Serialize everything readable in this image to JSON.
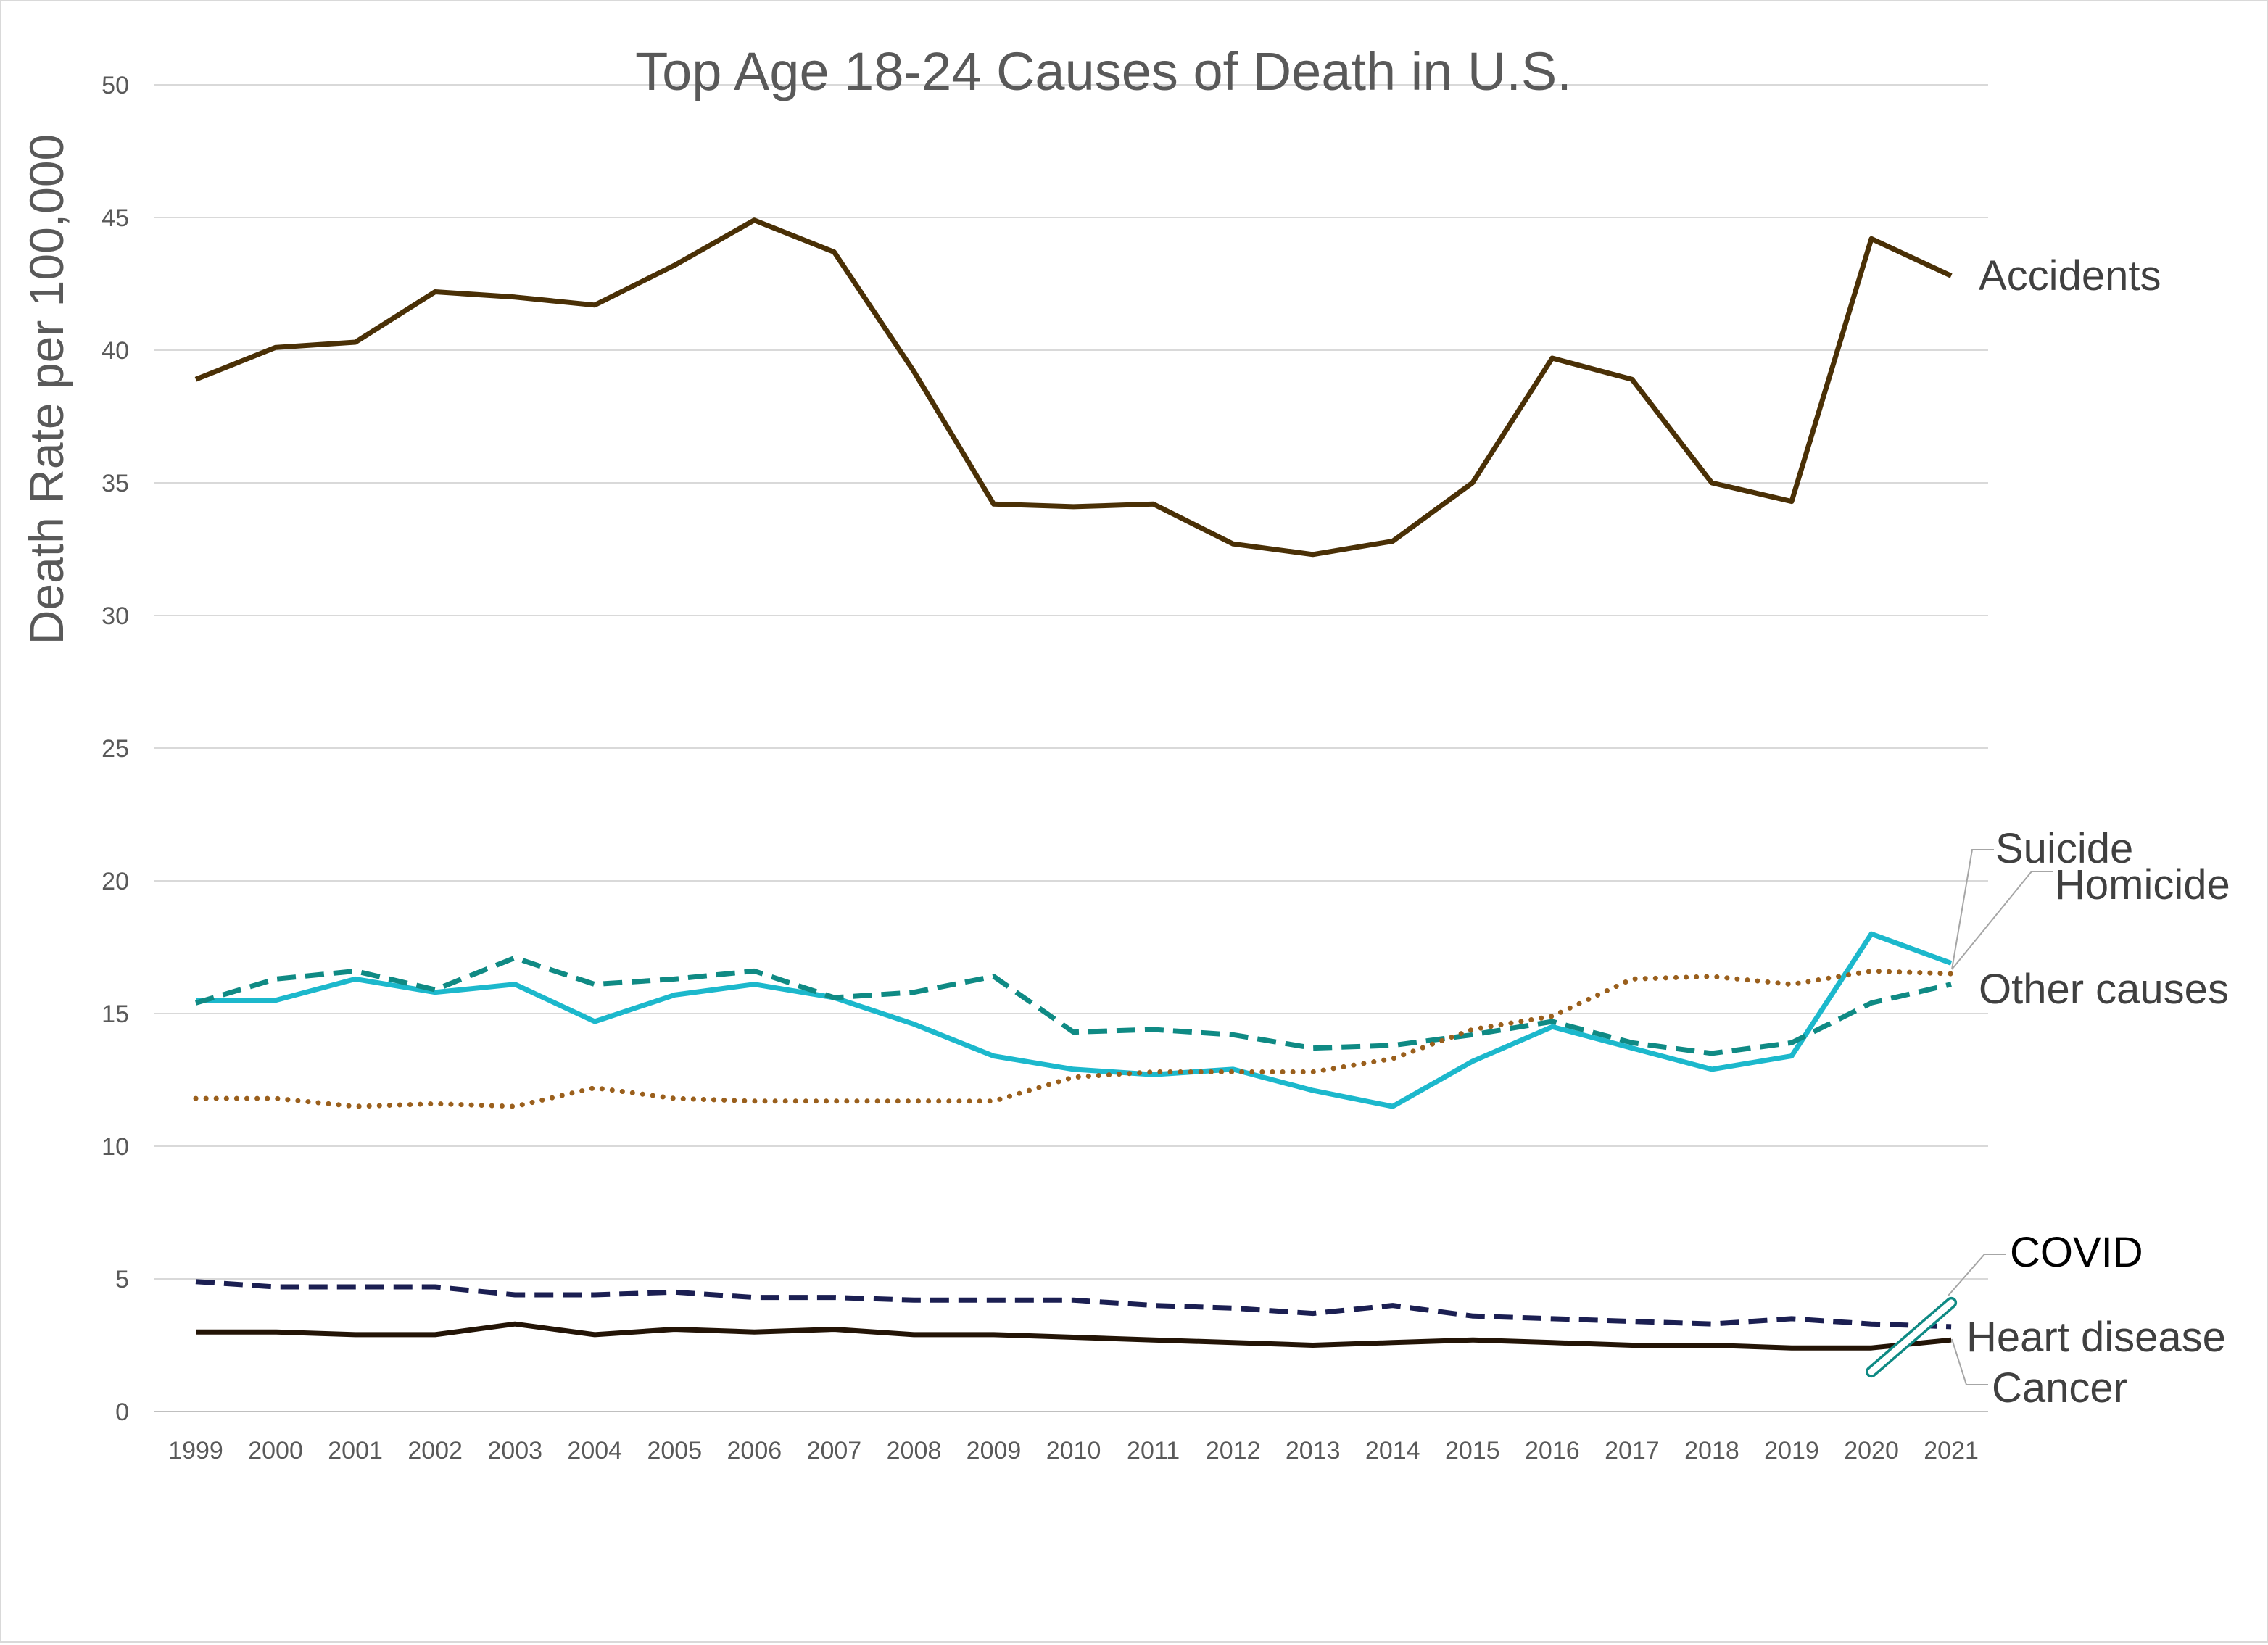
{
  "chart_data": {
    "type": "line",
    "title": "Top Age 18-24 Causes of Death in U.S.",
    "xlabel": "",
    "ylabel": "Death Rate per 100,000",
    "ylim": [
      0,
      50
    ],
    "yticks": [
      "0",
      "5",
      "10",
      "15",
      "20",
      "25",
      "30",
      "35",
      "40",
      "45",
      "50"
    ],
    "grid": true,
    "legend": "direct labels at right end of each line",
    "x": [
      "1999",
      "2000",
      "2001",
      "2002",
      "2003",
      "2004",
      "2005",
      "2006",
      "2007",
      "2008",
      "2009",
      "2010",
      "2011",
      "2012",
      "2013",
      "2014",
      "2015",
      "2016",
      "2017",
      "2018",
      "2019",
      "2020",
      "2021"
    ],
    "series": [
      {
        "name": "Accidents",
        "color": "#4a3006",
        "style": "solid",
        "values": [
          38.9,
          40.1,
          40.3,
          42.2,
          42.0,
          41.7,
          43.2,
          44.9,
          43.7,
          39.2,
          34.2,
          34.1,
          34.2,
          32.7,
          32.3,
          32.8,
          35.0,
          39.7,
          38.9,
          35.0,
          34.3,
          44.2,
          42.8
        ]
      },
      {
        "name": "Suicide",
        "color": "#1cb8cc",
        "style": "solid",
        "values": [
          15.5,
          15.5,
          16.3,
          15.8,
          16.1,
          14.7,
          15.7,
          16.1,
          15.6,
          14.6,
          13.4,
          12.9,
          12.7,
          12.9,
          12.1,
          11.5,
          13.2,
          14.5,
          13.7,
          12.9,
          13.4,
          18.0,
          16.9
        ]
      },
      {
        "name": "Homicide",
        "color": "#0f8a84",
        "style": "dashed",
        "values": [
          15.4,
          16.3,
          16.6,
          15.9,
          17.1,
          16.1,
          16.3,
          16.6,
          15.6,
          15.8,
          16.4,
          14.3,
          14.4,
          14.2,
          13.7,
          13.8,
          14.2,
          14.7,
          13.9,
          13.5,
          13.9,
          15.4,
          16.1
        ]
      },
      {
        "name": "Other causes",
        "color": "#9a5f1c",
        "style": "dotted",
        "values": [
          11.8,
          11.8,
          11.5,
          11.6,
          11.5,
          12.2,
          11.8,
          11.7,
          11.7,
          11.7,
          11.7,
          12.6,
          12.8,
          12.8,
          12.8,
          13.3,
          14.4,
          14.9,
          16.3,
          16.4,
          16.1,
          16.6,
          16.5
        ]
      },
      {
        "name": "Heart disease",
        "color": "#1b1f52",
        "style": "dashed",
        "values": [
          4.9,
          4.7,
          4.7,
          4.7,
          4.4,
          4.4,
          4.5,
          4.3,
          4.3,
          4.2,
          4.2,
          4.2,
          4.0,
          3.9,
          3.7,
          4.0,
          3.6,
          3.5,
          3.4,
          3.3,
          3.5,
          3.3,
          3.2
        ]
      },
      {
        "name": "Cancer",
        "color": "#231406",
        "style": "solid",
        "values": [
          3.0,
          3.0,
          2.9,
          2.9,
          3.3,
          2.9,
          3.1,
          3.0,
          3.1,
          2.9,
          2.9,
          2.8,
          2.7,
          2.6,
          2.5,
          2.6,
          2.7,
          2.6,
          2.5,
          2.5,
          2.4,
          2.4,
          2.7
        ]
      },
      {
        "name": "COVID",
        "color": "#0f8a84",
        "style": "hollow",
        "x": [
          "2020",
          "2021"
        ],
        "values": [
          1.5,
          4.1
        ]
      }
    ]
  }
}
